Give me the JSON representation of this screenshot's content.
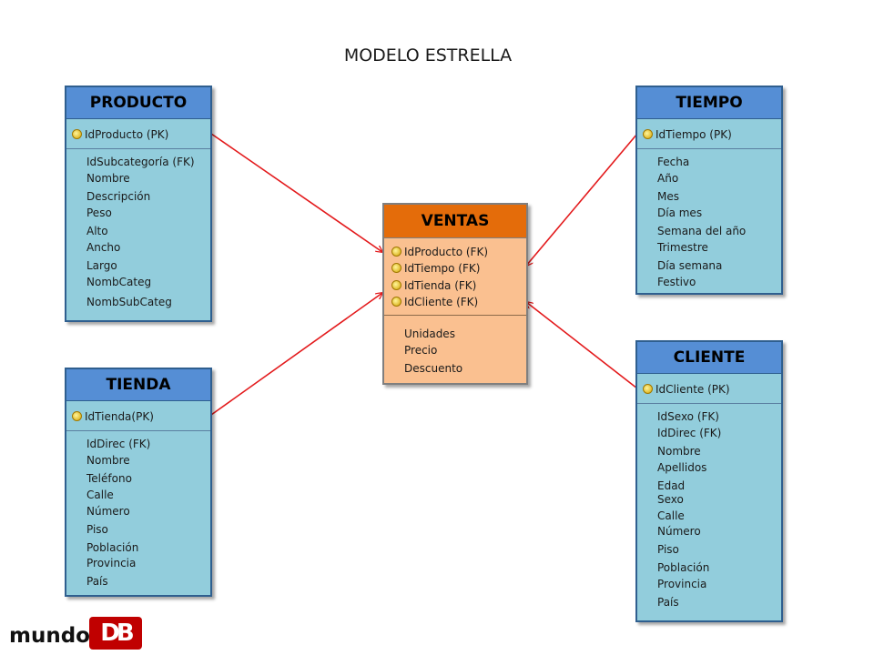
{
  "title": "MODELO ESTRELLA",
  "colors": {
    "dimension_header": "#558ed5",
    "dimension_body": "#92cddc",
    "fact_header": "#e46c0a",
    "fact_body": "#fac090",
    "relation_line": "#e31a1c",
    "logo_red": "#c00000"
  },
  "entities": {
    "producto": {
      "name": "PRODUCTO",
      "keys": [
        "IdProducto (PK)"
      ],
      "attributes": [
        "IdSubcategoría (FK)",
        "Nombre",
        "Descripción",
        "Peso",
        "Alto",
        "Ancho",
        "Largo",
        "NombCateg",
        "NombSubCateg"
      ]
    },
    "tiempo": {
      "name": "TIEMPO",
      "keys": [
        "IdTiempo (PK)"
      ],
      "attributes": [
        "Fecha",
        "Año",
        "Mes",
        "Día mes",
        "Semana del año",
        "Trimestre",
        "Día semana",
        "Festivo"
      ]
    },
    "ventas": {
      "name": "VENTAS",
      "keys": [
        "IdProducto (FK)",
        "IdTiempo (FK)",
        "IdTienda (FK)",
        "IdCliente (FK)"
      ],
      "attributes": [
        "Unidades",
        "Precio",
        "Descuento"
      ]
    },
    "tienda": {
      "name": "TIENDA",
      "keys": [
        "IdTienda(PK)"
      ],
      "attributes": [
        "IdDirec (FK)",
        "Nombre",
        "Teléfono",
        "Calle",
        "Número",
        "Piso",
        "Población",
        "Provincia",
        "País"
      ]
    },
    "cliente": {
      "name": "CLIENTE",
      "keys": [
        "IdCliente (PK)"
      ],
      "attributes": [
        "IdSexo (FK)",
        "IdDirec (FK)",
        "Nombre",
        "Apellidos",
        "Edad",
        "Sexo",
        "Calle",
        "Número",
        "Piso",
        "Población",
        "Provincia",
        "País"
      ]
    }
  },
  "logo": {
    "text": "mundo",
    "mark": "DB"
  }
}
